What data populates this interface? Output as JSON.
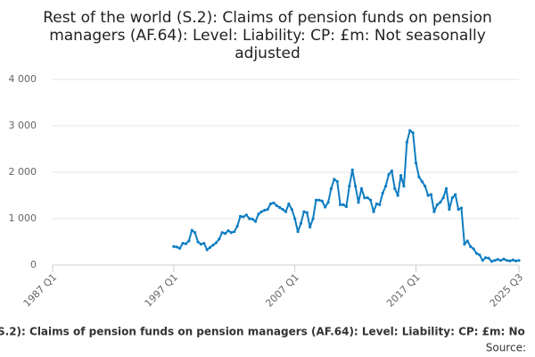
{
  "chart_data": {
    "type": "line",
    "title": [
      "Rest of the world (S.2): Claims of pension funds on pension",
      "managers (AF.64): Level: Liability: CP: £m: Not seasonally",
      "adjusted"
    ],
    "footer": "S.2): Claims of pension funds on pension managers (AF.64): Level: Liability: CP: £m: No",
    "source": "Source:",
    "categories": [
      "1987 Q1",
      null,
      null,
      null,
      null,
      null,
      null,
      null,
      null,
      null,
      null,
      null,
      null,
      null,
      null,
      null,
      null,
      null,
      null,
      null,
      null,
      null,
      null,
      null,
      null,
      null,
      null,
      null,
      null,
      null,
      null,
      null,
      null,
      null,
      null,
      null,
      null,
      null,
      null,
      null,
      "1997 Q1",
      null,
      null,
      null,
      null,
      null,
      null,
      null,
      null,
      null,
      null,
      null,
      null,
      null,
      null,
      null,
      null,
      null,
      null,
      null,
      null,
      null,
      null,
      null,
      null,
      null,
      null,
      null,
      null,
      null,
      null,
      null,
      null,
      null,
      null,
      null,
      null,
      null,
      null,
      null,
      "2007 Q1",
      null,
      null,
      null,
      null,
      null,
      null,
      null,
      null,
      null,
      null,
      null,
      null,
      null,
      null,
      null,
      null,
      null,
      null,
      null,
      null,
      null,
      null,
      null,
      null,
      null,
      null,
      null,
      null,
      null,
      null,
      null,
      null,
      null,
      null,
      null,
      null,
      null,
      null,
      null,
      "2017 Q1",
      null,
      null,
      null,
      null,
      null,
      null,
      null,
      null,
      null,
      null,
      null,
      null,
      null,
      null,
      null,
      null,
      null,
      null,
      null,
      null,
      null,
      null,
      null,
      null,
      null,
      null,
      null,
      null,
      null,
      null,
      null,
      null,
      null,
      "2025 Q3"
    ],
    "series": [
      {
        "name": null,
        "color": "#0f7dc2",
        "values": [
          null,
          null,
          null,
          null,
          null,
          null,
          null,
          null,
          null,
          null,
          null,
          null,
          null,
          null,
          null,
          null,
          null,
          null,
          null,
          null,
          null,
          null,
          null,
          null,
          null,
          null,
          null,
          null,
          null,
          null,
          null,
          null,
          null,
          null,
          null,
          null,
          null,
          null,
          null,
          null,
          400,
          390,
          360,
          470,
          460,
          520,
          750,
          700,
          500,
          450,
          470,
          330,
          380,
          430,
          480,
          560,
          700,
          680,
          740,
          700,
          720,
          840,
          1050,
          1040,
          1080,
          1000,
          990,
          940,
          1100,
          1150,
          1180,
          1200,
          1320,
          1340,
          1280,
          1240,
          1200,
          1150,
          1320,
          1200,
          1000,
          720,
          900,
          1150,
          1130,
          820,
          1000,
          1400,
          1400,
          1380,
          1250,
          1350,
          1650,
          1850,
          1800,
          1300,
          1300,
          1260,
          1700,
          2050,
          1700,
          1350,
          1650,
          1450,
          1450,
          1400,
          1150,
          1320,
          1300,
          1550,
          1700,
          1950,
          2030,
          1650,
          1500,
          1930,
          1700,
          2650,
          2900,
          2850,
          2200,
          1900,
          1800,
          1700,
          1500,
          1520,
          1150,
          1300,
          1350,
          1450,
          1650,
          1200,
          1450,
          1520,
          1200,
          1230,
          450,
          520,
          400,
          350,
          250,
          220,
          100,
          160,
          150,
          80,
          100,
          120,
          100,
          130,
          100,
          90,
          110,
          90,
          100
        ]
      }
    ],
    "ylim": [
      0,
      4000
    ],
    "yticks": [
      0,
      {
        "value": 1000,
        "label": "1 000"
      },
      {
        "value": 2000,
        "label": "2 000"
      },
      {
        "value": 3000,
        "label": "3 000"
      },
      {
        "value": 4000,
        "label": "4 000"
      }
    ],
    "grid": true
  }
}
